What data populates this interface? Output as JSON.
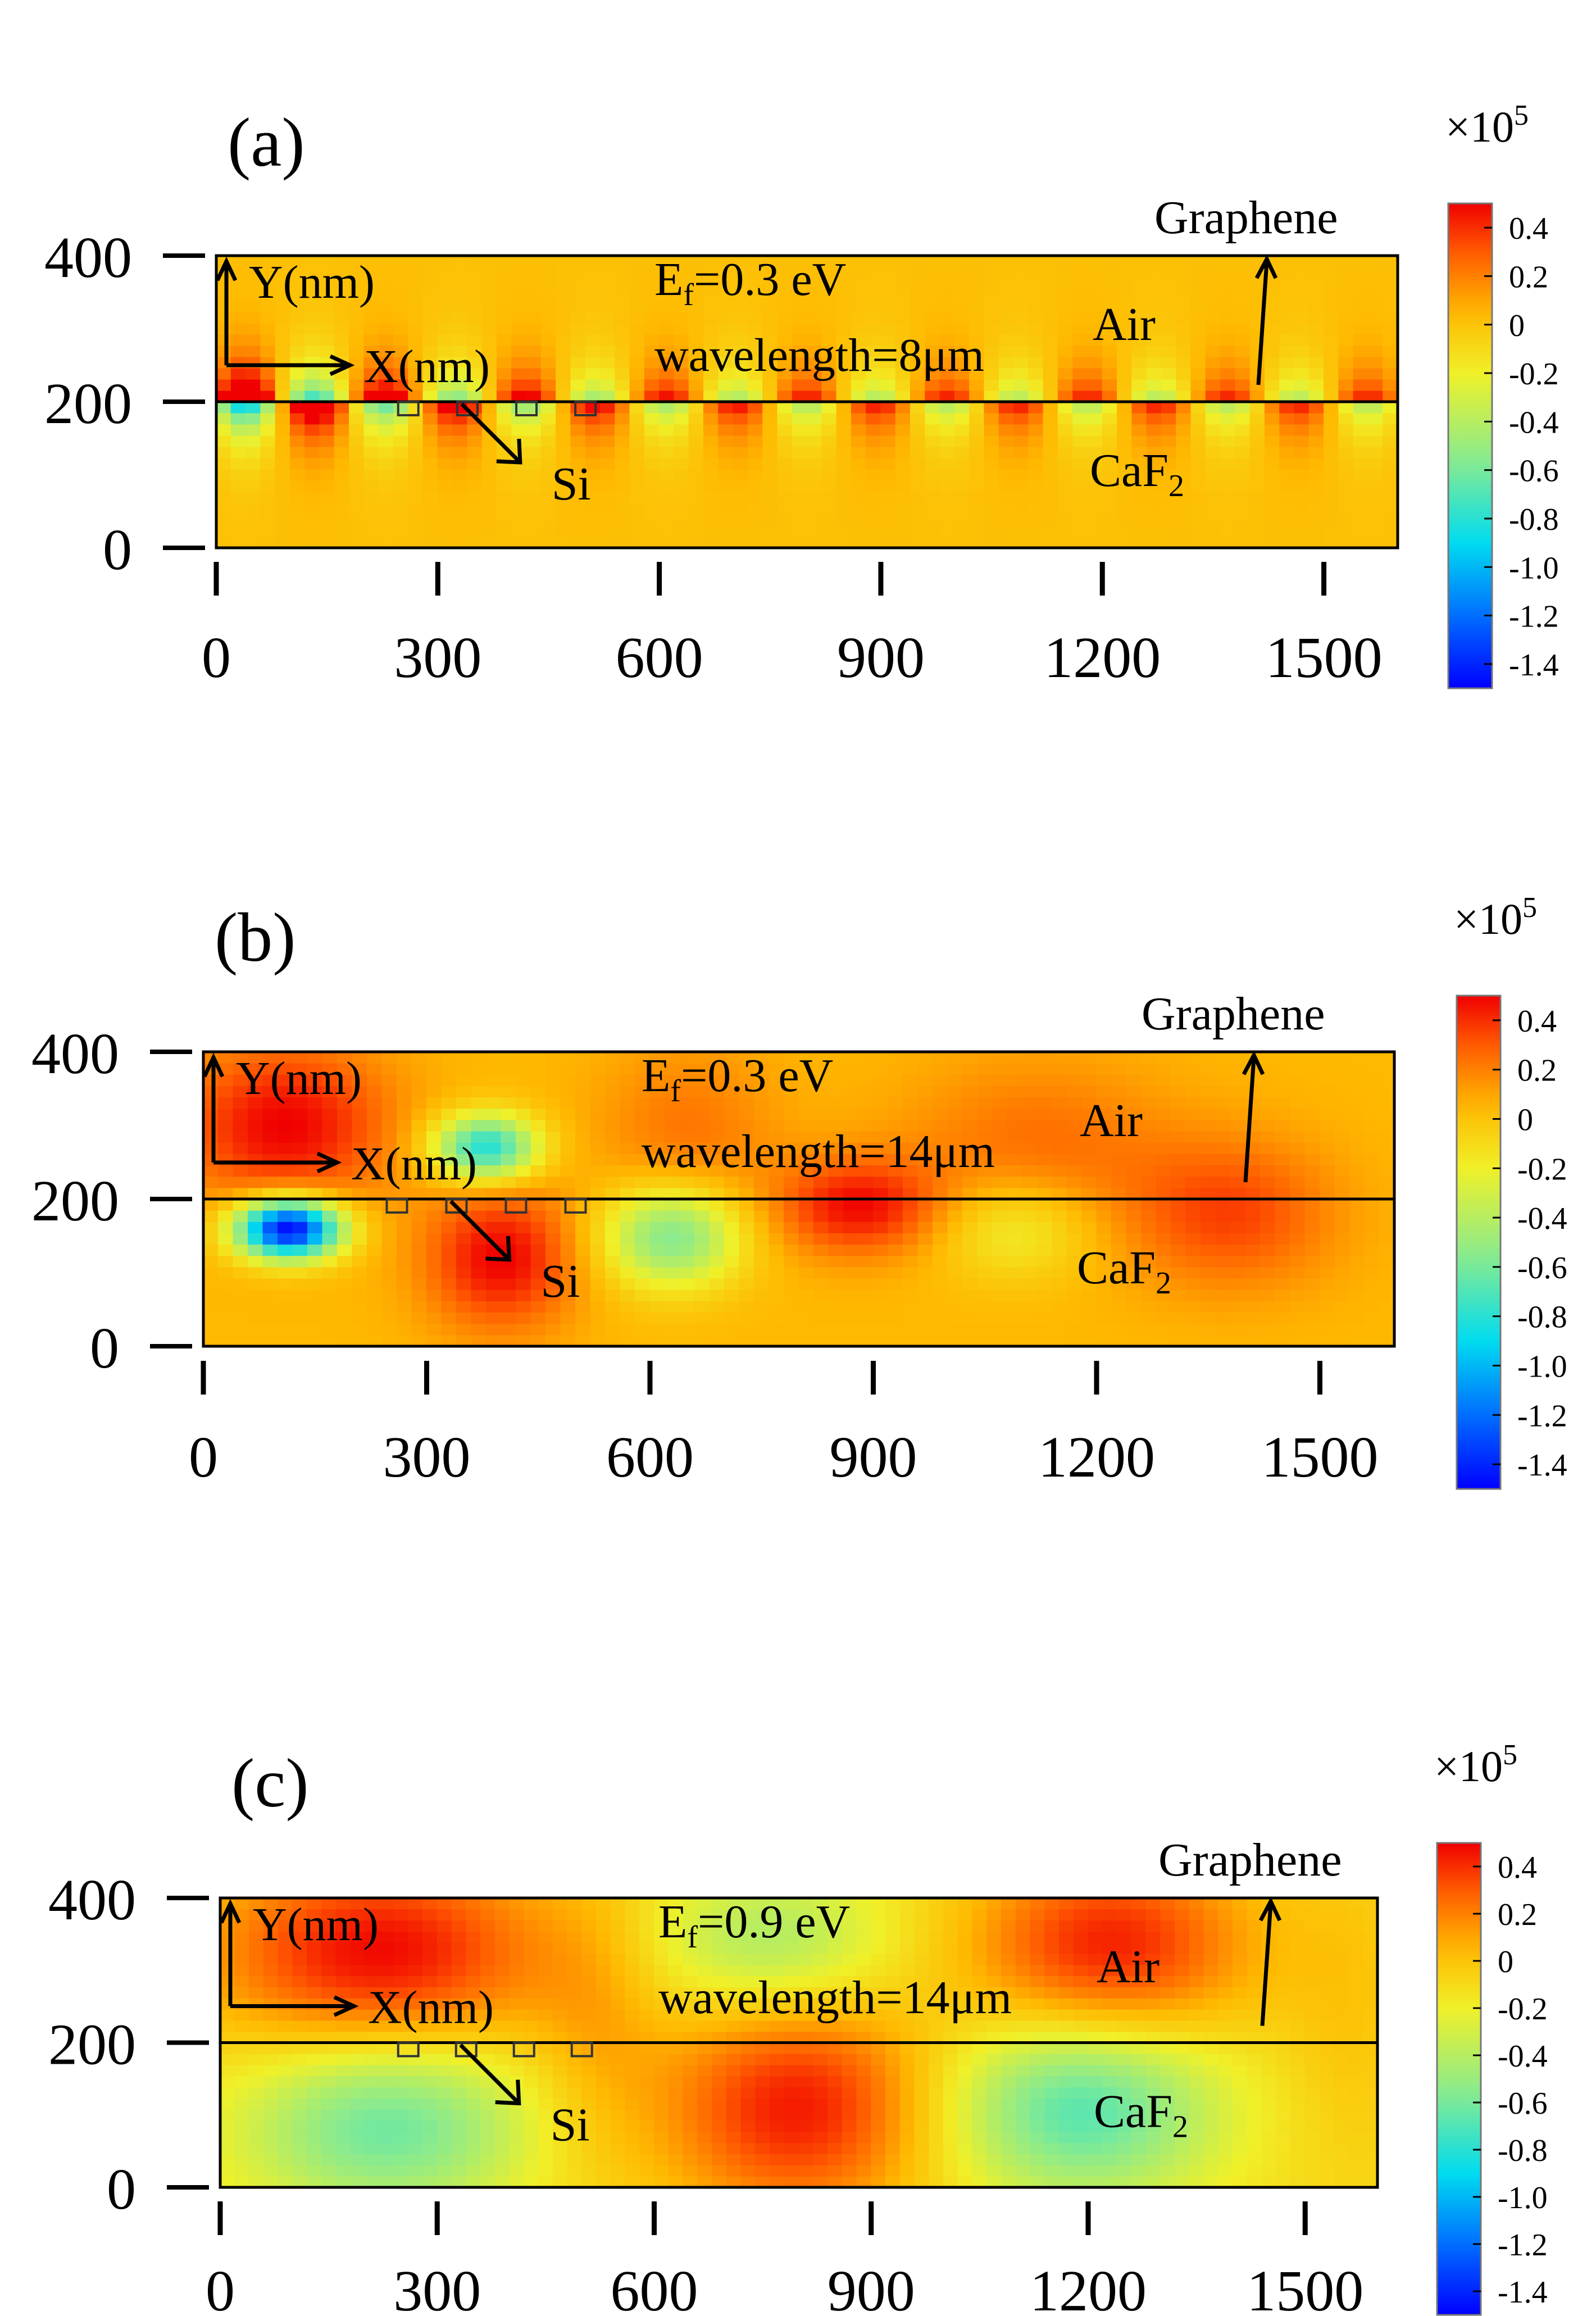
{
  "chart_data": [
    {
      "type": "heatmap",
      "panel_label": "(a)",
      "title": "",
      "xlabel": "X(nm)",
      "ylabel": "Y(nm)",
      "xlim": [
        0,
        1600
      ],
      "ylim": [
        0,
        400
      ],
      "x_ticks": [
        0,
        300,
        600,
        900,
        1200,
        1500
      ],
      "x_tick_labels": [
        "0",
        "300",
        "600",
        "900",
        "1200",
        "1500"
      ],
      "y_ticks": [
        0,
        200,
        400
      ],
      "y_tick_labels": [
        "0",
        "200",
        "400"
      ],
      "annotations": {
        "fermi_prefix": "E",
        "fermi_sub": "f",
        "fermi_suffix": "=0.3 eV",
        "wavelength": "wavelength=8μm",
        "air": "Air",
        "substrate_main": "CaF",
        "substrate_sub": "2",
        "graphene": "Graphene",
        "silicon": "Si"
      },
      "interface_y": 200,
      "si_ribbons_x": [
        260,
        340,
        420,
        500
      ],
      "colorbar": {
        "multiplier_prefix": "×10",
        "multiplier_exp": "5",
        "ticks": [
          "0.4",
          "0.2",
          "0",
          "-0.2",
          "-0.4",
          "-0.6",
          "-0.8",
          "-1.0",
          "-1.2",
          "-1.4"
        ],
        "tick_values": [
          0.4,
          0.2,
          0,
          -0.2,
          -0.4,
          -0.6,
          -0.8,
          -1.0,
          -1.2,
          -1.4
        ],
        "range": [
          -1.5,
          0.5
        ]
      },
      "field_model": {
        "kind": "surface-plasmon",
        "period_nm": 190,
        "decay_nm_x": 110,
        "decay_nm_y": 38,
        "background": 0.02,
        "base_stops": [
          "#ffb300",
          "#ffb300",
          "#ffb300"
        ]
      }
    },
    {
      "type": "heatmap",
      "panel_label": "(b)",
      "title": "",
      "xlabel": "X(nm)",
      "ylabel": "Y(nm)",
      "xlim": [
        0,
        1600
      ],
      "ylim": [
        0,
        400
      ],
      "x_ticks": [
        0,
        300,
        600,
        900,
        1200,
        1500
      ],
      "x_tick_labels": [
        "0",
        "300",
        "600",
        "900",
        "1200",
        "1500"
      ],
      "y_ticks": [
        0,
        200,
        400
      ],
      "y_tick_labels": [
        "0",
        "200",
        "400"
      ],
      "annotations": {
        "fermi_prefix": "E",
        "fermi_sub": "f",
        "fermi_suffix": "=0.3 eV",
        "wavelength": "wavelength=14μm",
        "air": "Air",
        "substrate_main": "CaF",
        "substrate_sub": "2",
        "graphene": "Graphene",
        "silicon": "Si"
      },
      "interface_y": 200,
      "si_ribbons_x": [
        260,
        340,
        420,
        500
      ],
      "colorbar": {
        "multiplier_prefix": "×10",
        "multiplier_exp": "5",
        "ticks": [
          "0.4",
          "0.2",
          "0",
          "-0.2",
          "-0.4",
          "-0.6",
          "-0.8",
          "-1.0",
          "-1.2",
          "-1.4"
        ],
        "tick_values": [
          0.4,
          0.2,
          0,
          -0.2,
          -0.4,
          -0.6,
          -0.8,
          -1.0,
          -1.2,
          -1.4
        ],
        "range": [
          -1.5,
          0.5
        ]
      },
      "field_model": {
        "kind": "lobes",
        "background": 0.05,
        "lobes": [
          {
            "x": 110,
            "y": 300,
            "sx": 140,
            "sy": 110,
            "v": 0.45
          },
          {
            "x": 115,
            "y": 160,
            "sx": 70,
            "sy": 40,
            "v": -1.6
          },
          {
            "x": 380,
            "y": 270,
            "sx": 70,
            "sy": 45,
            "v": -0.9
          },
          {
            "x": 400,
            "y": 120,
            "sx": 100,
            "sy": 95,
            "v": 0.45
          },
          {
            "x": 630,
            "y": 150,
            "sx": 95,
            "sy": 70,
            "v": -0.65
          },
          {
            "x": 650,
            "y": 290,
            "sx": 120,
            "sy": 120,
            "v": 0.18
          },
          {
            "x": 880,
            "y": 190,
            "sx": 110,
            "sy": 65,
            "v": 0.42
          },
          {
            "x": 1090,
            "y": 160,
            "sx": 110,
            "sy": 70,
            "v": -0.28
          },
          {
            "x": 1120,
            "y": 270,
            "sx": 180,
            "sy": 120,
            "v": 0.2
          },
          {
            "x": 1380,
            "y": 180,
            "sx": 140,
            "sy": 100,
            "v": 0.3
          }
        ]
      }
    },
    {
      "type": "heatmap",
      "panel_label": "(c)",
      "title": "",
      "xlabel": "X(nm)",
      "ylabel": "Y(nm)",
      "xlim": [
        0,
        1600
      ],
      "ylim": [
        0,
        400
      ],
      "x_ticks": [
        0,
        300,
        600,
        900,
        1200,
        1500
      ],
      "x_tick_labels": [
        "0",
        "300",
        "600",
        "900",
        "1200",
        "1500"
      ],
      "y_ticks": [
        0,
        200,
        400
      ],
      "y_tick_labels": [
        "0",
        "200",
        "400"
      ],
      "annotations": {
        "fermi_prefix": "E",
        "fermi_sub": "f",
        "fermi_suffix": "=0.9 eV",
        "wavelength": "wavelength=14μm",
        "air": "Air",
        "substrate_main": "CaF",
        "substrate_sub": "2",
        "graphene": "Graphene",
        "silicon": "Si"
      },
      "interface_y": 200,
      "si_ribbons_x": [
        260,
        340,
        420,
        500
      ],
      "colorbar": {
        "multiplier_prefix": "×10",
        "multiplier_exp": "5",
        "ticks": [
          "0.4",
          "0.2",
          "0",
          "-0.2",
          "-0.4",
          "-0.6",
          "-0.8",
          "-1.0",
          "-1.2",
          "-1.4"
        ],
        "tick_values": [
          0.4,
          0.2,
          0,
          -0.2,
          -0.4,
          -0.6,
          -0.8,
          -1.0,
          -1.2,
          -1.4
        ],
        "range": [
          -1.5,
          0.5
        ]
      },
      "field_model": {
        "kind": "lobes",
        "background": -0.1,
        "lobes": [
          {
            "x": 220,
            "y": 320,
            "sx": 230,
            "sy": 140,
            "v": 0.6
          },
          {
            "x": 230,
            "y": 90,
            "sx": 200,
            "sy": 130,
            "v": -0.55
          },
          {
            "x": 520,
            "y": 230,
            "sx": 90,
            "sy": 200,
            "v": 0.15
          },
          {
            "x": 800,
            "y": 110,
            "sx": 190,
            "sy": 150,
            "v": 0.55
          },
          {
            "x": 760,
            "y": 340,
            "sx": 170,
            "sy": 100,
            "v": -0.35
          },
          {
            "x": 1190,
            "y": 110,
            "sx": 190,
            "sy": 130,
            "v": -0.6
          },
          {
            "x": 1230,
            "y": 330,
            "sx": 190,
            "sy": 130,
            "v": 0.55
          },
          {
            "x": 1560,
            "y": 250,
            "sx": 90,
            "sy": 220,
            "v": 0.1
          }
        ]
      }
    }
  ]
}
